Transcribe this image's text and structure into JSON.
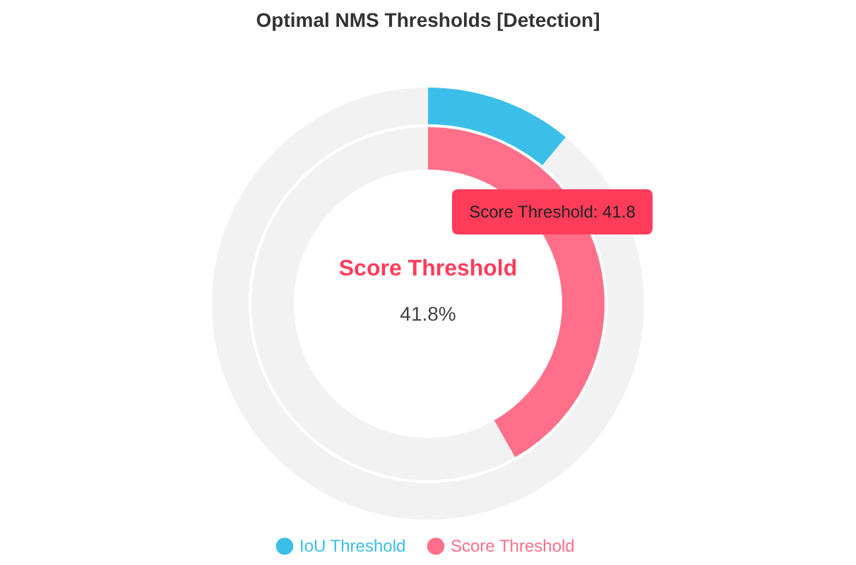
{
  "chart_data": {
    "type": "donut",
    "title": "Optimal NMS Thresholds [Detection]",
    "categories": [
      null,
      null
    ],
    "series": [
      {
        "name": "Score Threshold",
        "color": "#ff6f8a",
        "colors": [
          "#ff6f8a",
          "#f2f2f2"
        ],
        "values": [
          41.8,
          58.2
        ]
      },
      {
        "name": "IoU Threshold",
        "color": "#3bbfe8",
        "colors": [
          "#3bbfe8",
          "#f2f2f2"
        ],
        "values": [
          11,
          89
        ]
      }
    ],
    "legend": "bottom",
    "annotations": [
      "Score Threshold",
      "41.8%",
      "Score Threshold: 41.8"
    ]
  }
}
